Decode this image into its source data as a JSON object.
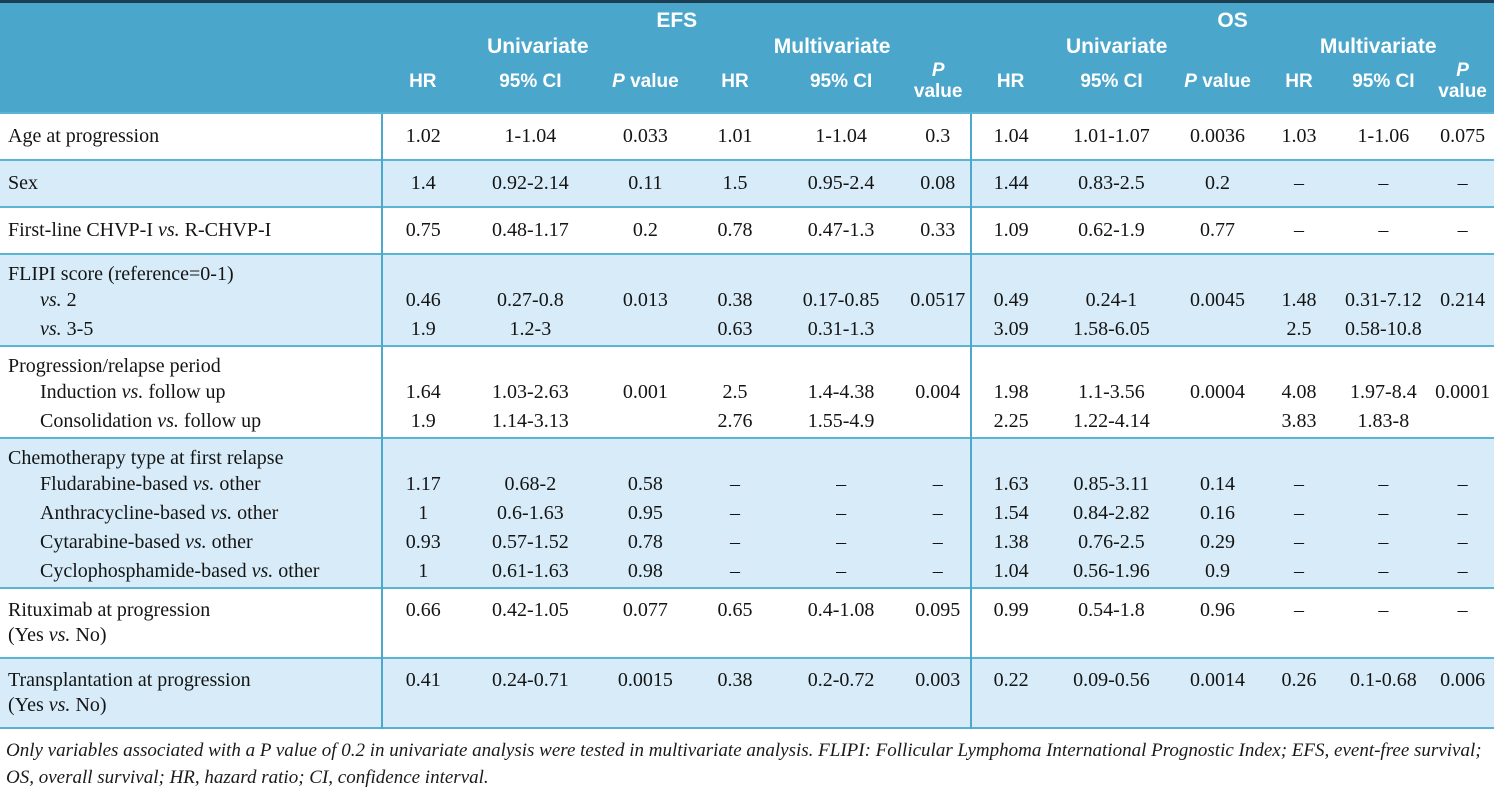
{
  "header": {
    "efs": "EFS",
    "os": "OS",
    "univariate": "Univariate",
    "multivariate": "Multivariate",
    "columns": [
      "HR",
      "95% CI",
      "P value"
    ]
  },
  "colors": {
    "header_bg": "#4ba6cb",
    "shaded_row_bg": "#d7ecf8",
    "separator": "#5ab4d4",
    "top_border": "#1b3f50",
    "header_text": "#ffffff"
  },
  "groups": [
    {
      "shaded": false,
      "rows": [
        {
          "label": "Age at progression",
          "indent": false,
          "cells": [
            "1.02",
            "1-1.04",
            "0.033",
            "1.01",
            "1-1.04",
            "0.3",
            "1.04",
            "1.01-1.07",
            "0.0036",
            "1.03",
            "1-1.06",
            "0.075"
          ]
        }
      ]
    },
    {
      "shaded": true,
      "rows": [
        {
          "label": "Sex",
          "indent": false,
          "cells": [
            "1.4",
            "0.92-2.14",
            "0.11",
            "1.5",
            "0.95-2.4",
            "0.08",
            "1.44",
            "0.83-2.5",
            "0.2",
            "–",
            "–",
            "–"
          ]
        }
      ]
    },
    {
      "shaded": false,
      "rows": [
        {
          "label": "First-line CHVP-I vs. R-CHVP-I",
          "indent": false,
          "cells": [
            "0.75",
            "0.48-1.17",
            "0.2",
            "0.78",
            "0.47-1.3",
            "0.33",
            "1.09",
            "0.62-1.9",
            "0.77",
            "–",
            "–",
            "–"
          ]
        }
      ]
    },
    {
      "shaded": true,
      "rows": [
        {
          "label": "FLIPI score (reference=0-1)",
          "indent": false,
          "cells": [
            "",
            "",
            "",
            "",
            "",
            "",
            "",
            "",
            "",
            "",
            "",
            ""
          ]
        },
        {
          "label": "vs. 2",
          "indent": true,
          "cells": [
            "0.46",
            "0.27-0.8",
            "0.013",
            "0.38",
            "0.17-0.85",
            "0.0517",
            "0.49",
            "0.24-1",
            "0.0045",
            "1.48",
            "0.31-7.12",
            "0.214"
          ]
        },
        {
          "label": "vs. 3-5",
          "indent": true,
          "cells": [
            "1.9",
            "1.2-3",
            "",
            "0.63",
            "0.31-1.3",
            "",
            "3.09",
            "1.58-6.05",
            "",
            "2.5",
            "0.58-10.8",
            ""
          ]
        }
      ]
    },
    {
      "shaded": false,
      "rows": [
        {
          "label": "Progression/relapse period",
          "indent": false,
          "cells": [
            "",
            "",
            "",
            "",
            "",
            "",
            "",
            "",
            "",
            "",
            "",
            ""
          ]
        },
        {
          "label": "Induction vs. follow up",
          "indent": true,
          "cells": [
            "1.64",
            "1.03-2.63",
            "0.001",
            "2.5",
            "1.4-4.38",
            "0.004",
            "1.98",
            "1.1-3.56",
            "0.0004",
            "4.08",
            "1.97-8.4",
            "0.0001"
          ]
        },
        {
          "label": "Consolidation vs. follow up",
          "indent": true,
          "cells": [
            "1.9",
            "1.14-3.13",
            "",
            "2.76",
            "1.55-4.9",
            "",
            "2.25",
            "1.22-4.14",
            "",
            "3.83",
            "1.83-8",
            ""
          ]
        }
      ]
    },
    {
      "shaded": true,
      "rows": [
        {
          "label": "Chemotherapy type at first relapse",
          "indent": false,
          "cells": [
            "",
            "",
            "",
            "",
            "",
            "",
            "",
            "",
            "",
            "",
            "",
            ""
          ]
        },
        {
          "label": "Fludarabine-based vs. other",
          "indent": true,
          "cells": [
            "1.17",
            "0.68-2",
            "0.58",
            "–",
            "–",
            "–",
            "1.63",
            "0.85-3.11",
            "0.14",
            "–",
            "–",
            "–"
          ]
        },
        {
          "label": "Anthracycline-based vs. other",
          "indent": true,
          "cells": [
            "1",
            "0.6-1.63",
            "0.95",
            "–",
            "–",
            "–",
            "1.54",
            "0.84-2.82",
            "0.16",
            "–",
            "–",
            "–"
          ]
        },
        {
          "label": "Cytarabine-based vs. other",
          "indent": true,
          "cells": [
            "0.93",
            "0.57-1.52",
            "0.78",
            "–",
            "–",
            "–",
            "1.38",
            "0.76-2.5",
            "0.29",
            "–",
            "–",
            "–"
          ]
        },
        {
          "label": "Cyclophosphamide-based vs. other",
          "indent": true,
          "cells": [
            "1",
            "0.61-1.63",
            "0.98",
            "–",
            "–",
            "–",
            "1.04",
            "0.56-1.96",
            "0.9",
            "–",
            "–",
            "–"
          ]
        }
      ]
    },
    {
      "shaded": false,
      "rows": [
        {
          "label": "Rituximab at progression",
          "label2": "(Yes vs. No)",
          "indent": false,
          "cells": [
            "0.66",
            "0.42-1.05",
            "0.077",
            "0.65",
            "0.4-1.08",
            "0.095",
            "0.99",
            "0.54-1.8",
            "0.96",
            "–",
            "–",
            "–"
          ]
        }
      ]
    },
    {
      "shaded": true,
      "rows": [
        {
          "label": "Transplantation at progression",
          "label2": "(Yes vs. No)",
          "indent": false,
          "cells": [
            "0.41",
            "0.24-0.71",
            "0.0015",
            "0.38",
            "0.2-0.72",
            "0.003",
            "0.22",
            "0.09-0.56",
            "0.0014",
            "0.26",
            "0.1-0.68",
            "0.006"
          ]
        }
      ]
    }
  ],
  "footnote": "Only variables associated with a P value of 0.2 in univariate analysis were tested in multivariate analysis. FLIPI: Follicular Lymphoma International Prognostic Index; EFS, event-free survival; OS, overall survival; HR, hazard ratio; CI, confidence interval."
}
